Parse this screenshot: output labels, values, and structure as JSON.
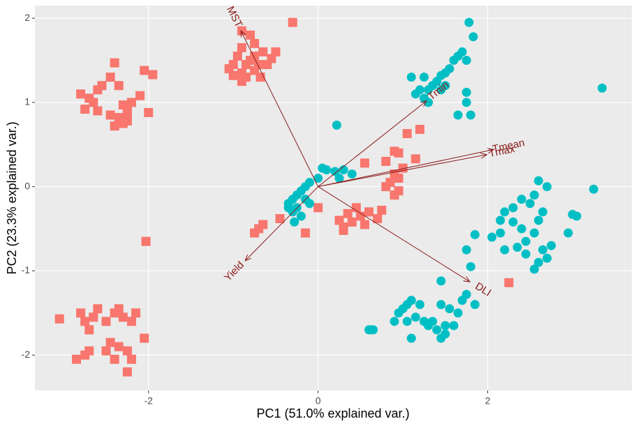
{
  "chart_data": {
    "type": "biplot",
    "x_label": "PC1 (51.0% explained var.)",
    "y_label": "PC2 (23.3% explained var.)",
    "xlim": [
      -3.34,
      3.7
    ],
    "ylim": [
      -2.42,
      2.15
    ],
    "xticks": [
      -2,
      0,
      2
    ],
    "yticks": [
      -2,
      -1,
      0,
      1,
      2
    ],
    "grid": true,
    "arrow_color": "#8b1a1a",
    "series": [
      {
        "color": "#F8766D",
        "marker": "square",
        "x": [
          -2.4,
          -2.45,
          -2.35,
          -2.55,
          -2.6,
          -2.8,
          -2.7,
          -2.65,
          -2.75,
          -2.6,
          -2.45,
          -2.35,
          -2.25,
          -2.3,
          -2.2,
          -2.1,
          -2.05,
          -1.95,
          -2.0,
          -2.25,
          -2.4,
          -2.3,
          -2.25,
          -0.9,
          -0.8,
          -0.75,
          -0.9,
          -0.95,
          -1.0,
          -1.05,
          -1.0,
          -0.9,
          -0.85,
          -0.8,
          -0.75,
          -0.65,
          -0.7,
          -0.75,
          -0.85,
          -0.9,
          -0.6,
          -0.5,
          -0.55,
          -0.68,
          -0.3,
          -3.05,
          -2.85,
          -2.75,
          -2.7,
          -2.75,
          -2.65,
          -2.6,
          -2.5,
          -2.4,
          -2.35,
          -2.3,
          -2.2,
          -2.15,
          -2.45,
          -2.35,
          -2.5,
          -2.4,
          -2.25,
          -2.2,
          -2.05,
          -2.25,
          -2.7,
          -2.8,
          -2.03,
          -0.65,
          -0.7,
          -0.75,
          -0.45,
          -0.15,
          0.0,
          0.25,
          0.3,
          0.4,
          0.5,
          0.55,
          0.6,
          0.7,
          0.75,
          0.45,
          0.3,
          0.35,
          0.9,
          0.95,
          0.8,
          0.85,
          0.95,
          0.9,
          0.8,
          0.95,
          0.9,
          1.15,
          1.05,
          1.2,
          1.0,
          0.55,
          2.25
        ],
        "y": [
          1.47,
          1.3,
          1.2,
          1.2,
          1.15,
          1.1,
          1.05,
          1.0,
          0.92,
          0.9,
          0.85,
          0.82,
          0.92,
          0.97,
          1.0,
          1.08,
          1.38,
          1.33,
          0.88,
          0.78,
          0.72,
          0.75,
          0.85,
          1.85,
          1.8,
          1.7,
          1.65,
          1.55,
          1.45,
          1.4,
          1.32,
          1.35,
          1.45,
          1.5,
          1.55,
          1.6,
          1.45,
          1.38,
          1.3,
          1.25,
          1.45,
          1.6,
          1.52,
          1.3,
          1.95,
          -1.57,
          -2.05,
          -2.0,
          -1.95,
          -1.6,
          -1.55,
          -1.45,
          -1.6,
          -1.5,
          -1.45,
          -1.55,
          -1.6,
          -1.5,
          -1.85,
          -1.9,
          -1.95,
          -2.05,
          -1.95,
          -2.05,
          -1.8,
          -2.2,
          -1.7,
          -1.5,
          -0.65,
          -0.45,
          -0.5,
          -0.55,
          -0.38,
          -0.55,
          -0.25,
          -0.4,
          -0.48,
          -0.42,
          -0.35,
          -0.45,
          -0.3,
          -0.38,
          -0.28,
          -0.25,
          -0.52,
          -0.32,
          -0.1,
          -0.05,
          0.0,
          0.05,
          0.1,
          0.15,
          0.3,
          0.4,
          0.42,
          0.33,
          0.63,
          0.68,
          0.22,
          0.28,
          -1.14
        ]
      },
      {
        "color": "#00BFC4",
        "marker": "circle",
        "x": [
          1.78,
          1.83,
          1.7,
          1.65,
          1.6,
          1.75,
          1.55,
          1.5,
          1.45,
          1.4,
          1.35,
          1.3,
          1.25,
          1.3,
          1.5,
          1.45,
          1.25,
          1.2,
          1.15,
          1.65,
          1.8,
          1.75,
          1.75,
          1.1,
          0.22,
          0.05,
          0.1,
          0.2,
          0.3,
          0.4,
          0.0,
          -0.1,
          -0.15,
          -0.2,
          -0.25,
          -0.3,
          -0.35,
          -0.15,
          -0.25,
          -0.3,
          -0.2,
          -0.28,
          -0.35,
          -0.1,
          0.25,
          3.35,
          3.25,
          2.6,
          2.7,
          2.55,
          2.4,
          2.5,
          2.3,
          2.2,
          2.15,
          2.3,
          2.4,
          2.6,
          2.65,
          2.55,
          2.45,
          2.35,
          2.15,
          2.05,
          2.2,
          2.45,
          2.6,
          2.7,
          2.75,
          2.65,
          2.55,
          2.95,
          3.0,
          3.05,
          1.75,
          1.8,
          1.85,
          0.62,
          0.6,
          0.9,
          0.95,
          1.0,
          1.05,
          1.1,
          1.2,
          1.15,
          1.25,
          1.3,
          1.35,
          1.4,
          1.5,
          1.55,
          1.65,
          1.7,
          1.75,
          1.6,
          1.45,
          1.1,
          1.45,
          1.5,
          1.85,
          0.65,
          1.05,
          1.45,
          1.25
        ],
        "y": [
          1.95,
          1.78,
          1.6,
          1.55,
          1.5,
          1.5,
          1.4,
          1.35,
          1.32,
          1.25,
          1.2,
          1.15,
          1.05,
          1.0,
          1.2,
          1.15,
          1.3,
          1.15,
          1.1,
          0.85,
          0.85,
          1.0,
          1.12,
          1.3,
          0.73,
          0.22,
          0.2,
          0.18,
          0.2,
          0.15,
          0.1,
          0.05,
          0.0,
          -0.05,
          -0.1,
          -0.15,
          -0.2,
          -0.15,
          -0.25,
          -0.3,
          -0.35,
          -0.42,
          -0.25,
          -0.2,
          0.1,
          1.17,
          -0.03,
          0.07,
          0.0,
          -0.1,
          -0.15,
          -0.2,
          -0.25,
          -0.3,
          -0.4,
          -0.42,
          -0.5,
          -0.4,
          -0.3,
          -0.55,
          -0.65,
          -0.72,
          -0.55,
          -0.6,
          -0.75,
          -0.8,
          -0.9,
          -0.85,
          -0.7,
          -0.75,
          -0.98,
          -0.55,
          -0.33,
          -0.35,
          -0.75,
          -0.95,
          -0.57,
          -1.7,
          -1.7,
          -1.6,
          -1.5,
          -1.45,
          -1.4,
          -1.35,
          -1.4,
          -1.55,
          -1.6,
          -1.65,
          -1.6,
          -1.7,
          -1.65,
          -1.45,
          -1.5,
          -1.35,
          -1.28,
          -1.65,
          -1.4,
          -1.8,
          -1.8,
          -1.75,
          -1.4,
          -1.7,
          -1.6,
          -1.12,
          -1.6
        ]
      }
    ],
    "loadings": [
      {
        "name": "MST",
        "x": -0.91,
        "y": 1.85
      },
      {
        "name": "Tmin",
        "x": 1.28,
        "y": 1.02
      },
      {
        "name": "Tmean",
        "x": 2.07,
        "y": 0.44
      },
      {
        "name": "Tmax",
        "x": 1.99,
        "y": 0.38
      },
      {
        "name": "DLI",
        "x": 1.79,
        "y": -1.13
      },
      {
        "name": "Yield",
        "x": -0.86,
        "y": -0.88
      }
    ]
  }
}
